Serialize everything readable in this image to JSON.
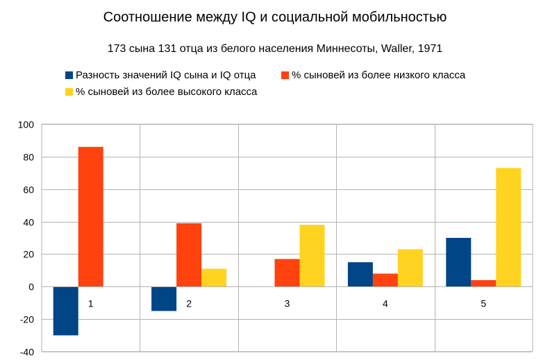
{
  "chart_data": {
    "type": "bar",
    "title": "Соотношение между IQ и социальной мобильностью",
    "subtitle": "173 сына 131 отца из белого населения Миннесоты, Waller, 1971",
    "categories": [
      "1",
      "2",
      "3",
      "4",
      "5"
    ],
    "series": [
      {
        "name": "Разность значений IQ сына и IQ отца",
        "color": "#004586",
        "values": [
          -30,
          -15,
          0,
          15,
          30
        ]
      },
      {
        "name": "% сыновей из более низкого класса",
        "color": "#ff420e",
        "values": [
          86,
          39,
          17,
          8,
          4
        ]
      },
      {
        "name": "% сыновей из более высокого класса",
        "color": "#ffd320",
        "values": [
          0,
          11,
          38,
          23,
          73
        ]
      }
    ],
    "ylim": [
      -40,
      100
    ],
    "yticks": [
      100,
      80,
      60,
      40,
      20,
      0,
      -20,
      -40
    ],
    "grid": true,
    "legend_position": "top"
  }
}
